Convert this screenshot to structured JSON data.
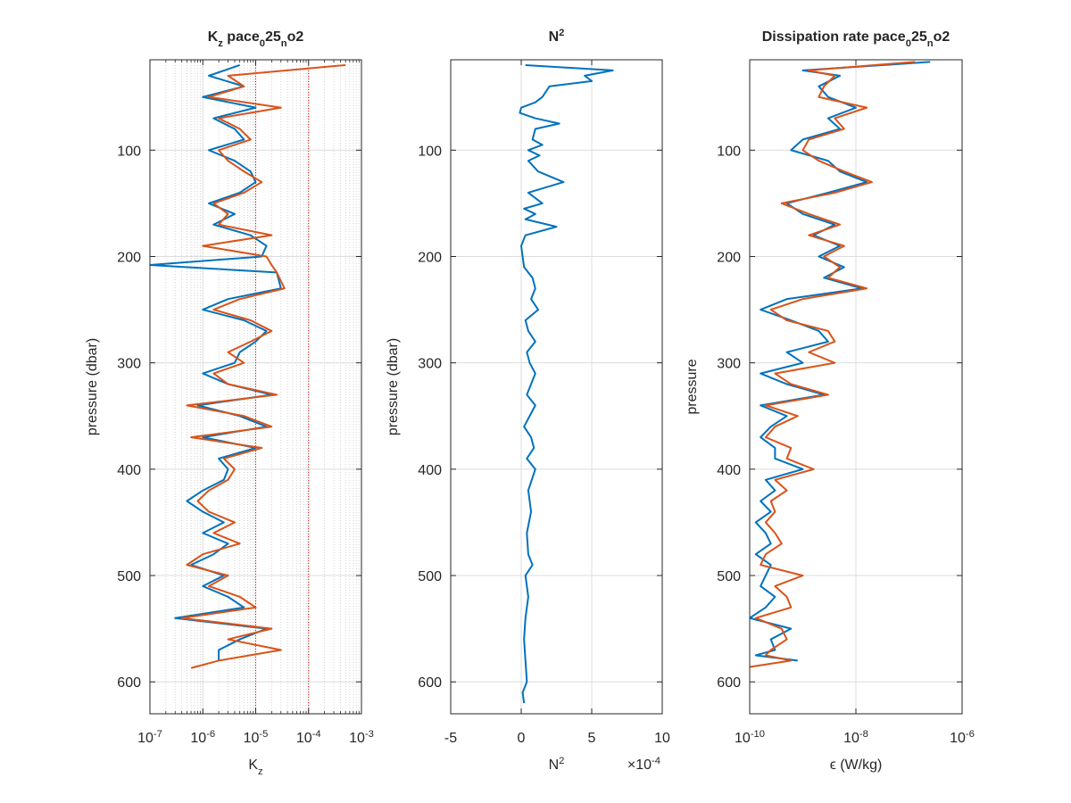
{
  "chart_data": [
    {
      "type": "line",
      "title": "K_z pace_025_no2",
      "xlabel": "K_z",
      "ylabel": "pressure (dbar)",
      "xscale": "log",
      "xlim": [
        1e-07,
        0.001
      ],
      "xticks": [
        {
          "value": 1e-07,
          "label": "10^{-7}"
        },
        {
          "value": 1e-06,
          "label": "10^{-6}"
        },
        {
          "value": 1e-05,
          "label": "10^{-5}"
        },
        {
          "value": 0.0001,
          "label": "10^{-4}"
        },
        {
          "value": 0.001,
          "label": "10^{-3}"
        }
      ],
      "ylim": [
        15,
        630
      ],
      "y_reversed": true,
      "yticks": [
        100,
        200,
        300,
        400,
        500,
        600
      ],
      "grid": true,
      "minor_grid": true,
      "reference_lines": {
        "values": [
          1e-05,
          0.0001
        ],
        "color": "#ff0000"
      },
      "y": [
        20,
        30,
        40,
        50,
        60,
        70,
        80,
        90,
        100,
        110,
        120,
        130,
        140,
        150,
        160,
        170,
        180,
        190,
        200,
        208,
        215,
        230,
        240,
        250,
        260,
        270,
        280,
        290,
        300,
        310,
        320,
        330,
        340,
        350,
        360,
        370,
        380,
        390,
        400,
        410,
        420,
        430,
        440,
        450,
        460,
        470,
        480,
        490,
        500,
        510,
        520,
        530,
        540,
        550,
        560,
        570,
        580,
        587
      ],
      "series": [
        {
          "color": "#0072bd",
          "values": [
            5e-06,
            1.3e-06,
            6e-06,
            1e-06,
            1e-05,
            1.6e-06,
            4e-06,
            6e-06,
            1.3e-06,
            4e-06,
            8e-06,
            1e-05,
            5e-06,
            1.3e-06,
            4e-06,
            1.6e-06,
            8e-06,
            1.6e-05,
            1.3e-05,
            1e-07,
            2.5e-05,
            3e-05,
            3e-06,
            1e-06,
            6e-06,
            1.6e-05,
            1e-05,
            5e-06,
            4e-06,
            1e-06,
            3e-06,
            2e-05,
            8e-07,
            5e-06,
            1.6e-05,
            1e-06,
            1e-05,
            2e-06,
            3e-06,
            2.5e-06,
            1e-06,
            5e-07,
            1e-06,
            2.5e-06,
            1e-06,
            3e-06,
            1.6e-06,
            6e-07,
            2.5e-06,
            1e-06,
            3e-06,
            6e-06,
            3e-07,
            1.6e-05,
            5e-06,
            2e-06,
            2e-06,
            null
          ]
        },
        {
          "color": "#d95319",
          "values": [
            0.0005,
            3e-06,
            6e-06,
            1.3e-06,
            3e-05,
            2e-06,
            5e-06,
            8e-06,
            2e-06,
            3e-06,
            6e-06,
            1.3e-05,
            6e-06,
            1.6e-06,
            3e-06,
            2e-06,
            2e-05,
            1e-06,
            1.6e-05,
            2e-05,
            2.5e-05,
            3.5e-05,
            5e-06,
            1.6e-06,
            8e-06,
            2e-05,
            8e-06,
            3e-06,
            6e-06,
            1.6e-06,
            3e-06,
            2.5e-05,
            5e-07,
            6e-06,
            2e-05,
            6e-07,
            1.3e-05,
            2.5e-06,
            4e-06,
            3e-06,
            1.3e-06,
            8e-07,
            1.3e-06,
            4e-06,
            1.6e-06,
            5e-06,
            1e-06,
            5e-07,
            3e-06,
            1.3e-06,
            5e-06,
            1e-05,
            4e-07,
            2e-05,
            3e-06,
            3e-05,
            2e-06,
            6e-07
          ]
        }
      ]
    },
    {
      "type": "line",
      "title": "N^2",
      "xlabel": "N^2",
      "x_exponent_label": "×10^{-4}",
      "ylabel": "pressure (dbar)",
      "xscale": "linear",
      "xlim": [
        -5,
        10
      ],
      "xticks": [
        -5,
        0,
        5,
        10
      ],
      "ylim": [
        15,
        630
      ],
      "y_reversed": true,
      "yticks": [
        100,
        200,
        300,
        400,
        500,
        600
      ],
      "grid": true,
      "minor_grid": false,
      "y": [
        20,
        25,
        30,
        35,
        40,
        50,
        55,
        60,
        65,
        70,
        75,
        80,
        90,
        95,
        100,
        105,
        110,
        120,
        130,
        140,
        150,
        155,
        160,
        165,
        172,
        180,
        190,
        200,
        210,
        220,
        230,
        240,
        250,
        260,
        270,
        280,
        290,
        300,
        310,
        320,
        330,
        340,
        350,
        360,
        370,
        380,
        390,
        400,
        420,
        440,
        460,
        480,
        490,
        500,
        520,
        540,
        560,
        580,
        600,
        610,
        620
      ],
      "series": [
        {
          "color": "#0072bd",
          "values": [
            0.3,
            6.5,
            4.5,
            5,
            2,
            1.5,
            1,
            0,
            -0.1,
            1,
            2.7,
            1,
            0.8,
            1.5,
            0.5,
            1.3,
            0.5,
            1.2,
            3,
            0.5,
            1.5,
            0.2,
            1,
            0.3,
            2.5,
            0.3,
            0,
            0.1,
            0.2,
            0.8,
            1,
            0.7,
            1.2,
            0.3,
            0.5,
            1,
            0.4,
            0.6,
            1,
            0.7,
            0.4,
            1,
            0.6,
            0.2,
            0.7,
            0.9,
            0.4,
            1,
            0.5,
            0.7,
            0.4,
            0.5,
            0.8,
            0.3,
            0.5,
            0.3,
            0.2,
            0.3,
            0.4,
            0.1,
            0.2
          ]
        }
      ]
    },
    {
      "type": "line",
      "title": "Dissipation rate pace_025_no2",
      "xlabel": "ϵ (W/kg)",
      "ylabel": "pressure",
      "xscale": "log",
      "xlim": [
        1e-10,
        1e-06
      ],
      "xticks": [
        {
          "value": 1e-10,
          "label": "10^{-10}"
        },
        {
          "value": 1e-08,
          "label": "10^{-8}"
        },
        {
          "value": 1e-06,
          "label": "10^{-6}"
        }
      ],
      "ylim": [
        15,
        630
      ],
      "y_reversed": true,
      "yticks": [
        100,
        200,
        300,
        400,
        500,
        600
      ],
      "grid": true,
      "minor_grid": false,
      "y": [
        17,
        25,
        30,
        40,
        50,
        60,
        70,
        80,
        90,
        100,
        110,
        120,
        130,
        140,
        150,
        160,
        170,
        180,
        190,
        200,
        210,
        220,
        230,
        240,
        250,
        260,
        270,
        280,
        290,
        300,
        310,
        320,
        330,
        340,
        350,
        360,
        370,
        380,
        390,
        400,
        410,
        420,
        430,
        440,
        450,
        460,
        470,
        480,
        490,
        500,
        510,
        520,
        530,
        540,
        550,
        560,
        570,
        575,
        580,
        586
      ],
      "series": [
        {
          "color": "#0072bd",
          "values": [
            2.5e-07,
            1e-09,
            5e-09,
            2e-09,
            3e-09,
            1e-08,
            3e-09,
            5e-09,
            1e-09,
            6e-10,
            3e-09,
            5e-09,
            1.6e-08,
            3e-09,
            5e-10,
            1e-09,
            4e-09,
            1.6e-09,
            5e-09,
            2e-09,
            6e-09,
            2.5e-09,
            1.3e-08,
            5e-10,
            1.6e-10,
            6e-10,
            2e-09,
            3e-09,
            5e-10,
            1e-09,
            1.6e-10,
            5e-10,
            2.5e-09,
            1.6e-10,
            5e-10,
            2.5e-10,
            1.6e-10,
            3e-10,
            3e-10,
            1e-09,
            2e-10,
            3e-10,
            1.6e-10,
            2.5e-10,
            1.3e-10,
            2e-10,
            2.5e-10,
            1.3e-10,
            2.5e-10,
            2e-10,
            1.6e-10,
            3e-10,
            2e-10,
            1e-10,
            6e-10,
            2.5e-10,
            3e-10,
            1.3e-10,
            8e-10,
            null
          ]
        },
        {
          "color": "#d95319",
          "values": [
            1.3e-07,
            1.3e-09,
            4e-09,
            2.5e-09,
            2e-09,
            1.6e-08,
            4e-09,
            6e-09,
            1.3e-09,
            1e-09,
            2e-09,
            6e-09,
            2e-08,
            4e-09,
            4e-10,
            1.3e-09,
            5e-09,
            1.3e-09,
            6e-09,
            2.5e-09,
            5e-09,
            3e-09,
            1.6e-08,
            1e-09,
            2.5e-10,
            5e-10,
            3e-09,
            4e-09,
            1.3e-09,
            4e-09,
            3e-10,
            6e-10,
            3e-09,
            2e-10,
            8e-10,
            3e-10,
            2e-10,
            6e-10,
            5e-10,
            1.6e-09,
            3e-10,
            5e-10,
            2.5e-10,
            3e-10,
            2e-10,
            3e-10,
            4e-10,
            2e-10,
            1.6e-10,
            1e-09,
            3e-10,
            5e-10,
            6e-10,
            1.3e-10,
            4e-10,
            5e-10,
            2.5e-10,
            2e-10,
            6e-10,
            1e-10
          ]
        }
      ]
    }
  ]
}
